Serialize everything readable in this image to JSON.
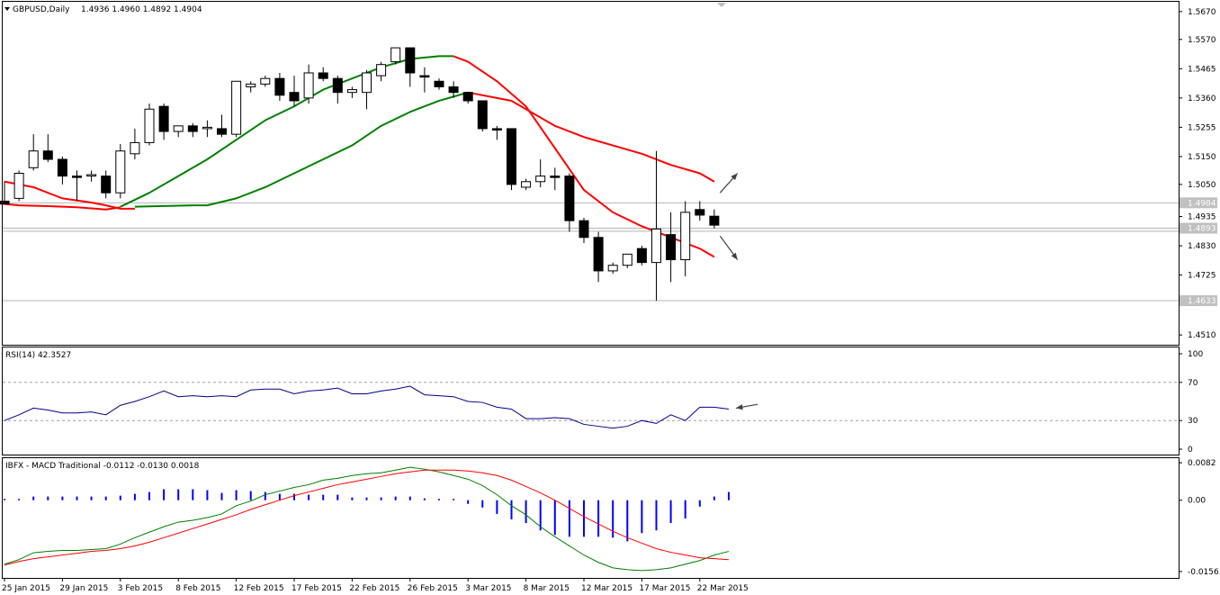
{
  "header": {
    "symbol": "GBPUSD,Daily",
    "ohlc": "1.4936 1.4960 1.4892 1.4904"
  },
  "chart_data": [
    {
      "type": "candlestick",
      "panel": "price",
      "ylim": [
        1.4475,
        1.5705
      ],
      "yticks": [
        "1.5670",
        "1.5570",
        "1.5465",
        "1.5360",
        "1.5255",
        "1.5150",
        "1.5050",
        "1.4935",
        "1.4830",
        "1.4725",
        "1.4510"
      ],
      "tags": [
        {
          "label": "1.4984",
          "value": 1.4984
        },
        {
          "label": "1.4893",
          "value": 1.4893
        },
        {
          "label": "1.4633",
          "value": 1.4633
        }
      ],
      "hlines": [
        1.4984,
        1.4893,
        1.4882,
        1.4633
      ],
      "xticks": [
        {
          "label": "25 Jan 2015",
          "index": 0
        },
        {
          "label": "29 Jan 2015",
          "index": 4
        },
        {
          "label": "3 Feb 2015",
          "index": 8
        },
        {
          "label": "8 Feb 2015",
          "index": 12
        },
        {
          "label": "12 Feb 2015",
          "index": 16
        },
        {
          "label": "17 Feb 2015",
          "index": 20
        },
        {
          "label": "22 Feb 2015",
          "index": 24
        },
        {
          "label": "26 Feb 2015",
          "index": 28
        },
        {
          "label": "3 Mar 2015",
          "index": 32
        },
        {
          "label": "8 Mar 2015",
          "index": 36
        },
        {
          "label": "12 Mar 2015",
          "index": 40
        },
        {
          "label": "17 Mar 2015",
          "index": 44
        },
        {
          "label": "22 Mar 2015",
          "index": 48
        }
      ],
      "candles": [
        {
          "o": 1.499,
          "h": 1.506,
          "l": 1.498,
          "c": 1.498
        },
        {
          "o": 1.5,
          "h": 1.51,
          "l": 1.499,
          "c": 1.509
        },
        {
          "o": 1.511,
          "h": 1.523,
          "l": 1.51,
          "c": 1.517
        },
        {
          "o": 1.517,
          "h": 1.523,
          "l": 1.513,
          "c": 1.514
        },
        {
          "o": 1.514,
          "h": 1.515,
          "l": 1.505,
          "c": 1.508
        },
        {
          "o": 1.508,
          "h": 1.51,
          "l": 1.499,
          "c": 1.5075
        },
        {
          "o": 1.508,
          "h": 1.51,
          "l": 1.506,
          "c": 1.5085
        },
        {
          "o": 1.508,
          "h": 1.51,
          "l": 1.5,
          "c": 1.502
        },
        {
          "o": 1.502,
          "h": 1.5195,
          "l": 1.5,
          "c": 1.517
        },
        {
          "o": 1.516,
          "h": 1.525,
          "l": 1.514,
          "c": 1.52
        },
        {
          "o": 1.52,
          "h": 1.534,
          "l": 1.519,
          "c": 1.532
        },
        {
          "o": 1.533,
          "h": 1.534,
          "l": 1.521,
          "c": 1.524
        },
        {
          "o": 1.524,
          "h": 1.526,
          "l": 1.522,
          "c": 1.526
        },
        {
          "o": 1.526,
          "h": 1.527,
          "l": 1.522,
          "c": 1.524
        },
        {
          "o": 1.525,
          "h": 1.528,
          "l": 1.522,
          "c": 1.5255
        },
        {
          "o": 1.525,
          "h": 1.53,
          "l": 1.522,
          "c": 1.523
        },
        {
          "o": 1.523,
          "h": 1.542,
          "l": 1.522,
          "c": 1.542
        },
        {
          "o": 1.54,
          "h": 1.542,
          "l": 1.538,
          "c": 1.541
        },
        {
          "o": 1.541,
          "h": 1.544,
          "l": 1.54,
          "c": 1.543
        },
        {
          "o": 1.543,
          "h": 1.545,
          "l": 1.535,
          "c": 1.537
        },
        {
          "o": 1.538,
          "h": 1.544,
          "l": 1.533,
          "c": 1.535
        },
        {
          "o": 1.536,
          "h": 1.548,
          "l": 1.534,
          "c": 1.545
        },
        {
          "o": 1.545,
          "h": 1.547,
          "l": 1.542,
          "c": 1.543
        },
        {
          "o": 1.543,
          "h": 1.544,
          "l": 1.534,
          "c": 1.538
        },
        {
          "o": 1.538,
          "h": 1.54,
          "l": 1.536,
          "c": 1.539
        },
        {
          "o": 1.538,
          "h": 1.546,
          "l": 1.532,
          "c": 1.545
        },
        {
          "o": 1.544,
          "h": 1.549,
          "l": 1.542,
          "c": 1.548
        },
        {
          "o": 1.549,
          "h": 1.554,
          "l": 1.548,
          "c": 1.554
        },
        {
          "o": 1.554,
          "h": 1.554,
          "l": 1.54,
          "c": 1.545
        },
        {
          "o": 1.544,
          "h": 1.547,
          "l": 1.538,
          "c": 1.5435
        },
        {
          "o": 1.542,
          "h": 1.543,
          "l": 1.539,
          "c": 1.54
        },
        {
          "o": 1.54,
          "h": 1.542,
          "l": 1.536,
          "c": 1.538
        },
        {
          "o": 1.538,
          "h": 1.538,
          "l": 1.534,
          "c": 1.535
        },
        {
          "o": 1.535,
          "h": 1.535,
          "l": 1.524,
          "c": 1.525
        },
        {
          "o": 1.525,
          "h": 1.526,
          "l": 1.521,
          "c": 1.5245
        },
        {
          "o": 1.525,
          "h": 1.525,
          "l": 1.503,
          "c": 1.505
        },
        {
          "o": 1.504,
          "h": 1.507,
          "l": 1.503,
          "c": 1.506
        },
        {
          "o": 1.506,
          "h": 1.514,
          "l": 1.504,
          "c": 1.508
        },
        {
          "o": 1.508,
          "h": 1.511,
          "l": 1.503,
          "c": 1.5075
        },
        {
          "o": 1.508,
          "h": 1.509,
          "l": 1.488,
          "c": 1.492
        },
        {
          "o": 1.492,
          "h": 1.493,
          "l": 1.484,
          "c": 1.486
        },
        {
          "o": 1.486,
          "h": 1.488,
          "l": 1.47,
          "c": 1.474
        },
        {
          "o": 1.474,
          "h": 1.477,
          "l": 1.473,
          "c": 1.476
        },
        {
          "o": 1.476,
          "h": 1.48,
          "l": 1.475,
          "c": 1.48
        },
        {
          "o": 1.482,
          "h": 1.483,
          "l": 1.476,
          "c": 1.477
        },
        {
          "o": 1.477,
          "h": 1.517,
          "l": 1.4633,
          "c": 1.489
        },
        {
          "o": 1.487,
          "h": 1.495,
          "l": 1.47,
          "c": 1.478
        },
        {
          "o": 1.478,
          "h": 1.499,
          "l": 1.472,
          "c": 1.495
        },
        {
          "o": 1.496,
          "h": 1.499,
          "l": 1.492,
          "c": 1.494
        },
        {
          "o": 1.4936,
          "h": 1.496,
          "l": 1.4892,
          "c": 1.4904
        }
      ],
      "series": [
        {
          "color": "#ff0000",
          "values": [
            {
              "i": 0,
              "v": 1.506
            },
            {
              "i": 2,
              "v": 1.504
            },
            {
              "i": 4,
              "v": 1.5
            },
            {
              "i": 6,
              "v": 1.4985
            },
            {
              "i": 7,
              "v": 1.4975
            },
            {
              "i": 8,
              "v": 1.4963
            },
            {
              "i": 9,
              "v": 1.4963
            }
          ]
        },
        {
          "color": "#ff0000",
          "values": [
            {
              "i": 32,
              "v": 1.538
            },
            {
              "i": 34,
              "v": 1.536
            },
            {
              "i": 35,
              "v": 1.535
            },
            {
              "i": 36,
              "v": 1.532
            },
            {
              "i": 38,
              "v": 1.526
            },
            {
              "i": 40,
              "v": 1.522
            },
            {
              "i": 42,
              "v": 1.519
            },
            {
              "i": 44,
              "v": 1.516
            },
            {
              "i": 46,
              "v": 1.512
            },
            {
              "i": 48,
              "v": 1.509
            },
            {
              "i": 49,
              "v": 1.506
            }
          ]
        },
        {
          "color": "#ff0000",
          "values": [
            {
              "i": 31,
              "v": 1.551
            },
            {
              "i": 32,
              "v": 1.549
            },
            {
              "i": 34,
              "v": 1.542
            },
            {
              "i": 36,
              "v": 1.533
            },
            {
              "i": 38,
              "v": 1.518
            },
            {
              "i": 40,
              "v": 1.503
            },
            {
              "i": 42,
              "v": 1.495
            },
            {
              "i": 44,
              "v": 1.49
            },
            {
              "i": 46,
              "v": 1.486
            },
            {
              "i": 48,
              "v": 1.482
            },
            {
              "i": 49,
              "v": 1.479
            }
          ]
        },
        {
          "color": "#ff0000",
          "values": [
            {
              "i": -1,
              "v": 1.4985
            },
            {
              "i": 1,
              "v": 1.4975
            },
            {
              "i": 3,
              "v": 1.4972
            },
            {
              "i": 5,
              "v": 1.4968
            },
            {
              "i": 7,
              "v": 1.496
            },
            {
              "i": 8,
              "v": 1.4968
            }
          ]
        },
        {
          "color": "#008000",
          "values": [
            {
              "i": 8,
              "v": 1.497
            },
            {
              "i": 10,
              "v": 1.502
            },
            {
              "i": 12,
              "v": 1.508
            },
            {
              "i": 14,
              "v": 1.514
            },
            {
              "i": 16,
              "v": 1.521
            },
            {
              "i": 18,
              "v": 1.528
            },
            {
              "i": 20,
              "v": 1.533
            },
            {
              "i": 22,
              "v": 1.539
            },
            {
              "i": 24,
              "v": 1.543
            },
            {
              "i": 26,
              "v": 1.547
            },
            {
              "i": 28,
              "v": 1.55
            },
            {
              "i": 30,
              "v": 1.551
            },
            {
              "i": 31,
              "v": 1.551
            }
          ]
        },
        {
          "color": "#008000",
          "values": [
            {
              "i": 9,
              "v": 1.497
            },
            {
              "i": 13,
              "v": 1.4975
            },
            {
              "i": 14,
              "v": 1.4975
            },
            {
              "i": 16,
              "v": 1.5
            },
            {
              "i": 18,
              "v": 1.504
            },
            {
              "i": 20,
              "v": 1.509
            },
            {
              "i": 22,
              "v": 1.514
            },
            {
              "i": 24,
              "v": 1.519
            },
            {
              "i": 26,
              "v": 1.526
            },
            {
              "i": 28,
              "v": 1.531
            },
            {
              "i": 30,
              "v": 1.535
            },
            {
              "i": 32,
              "v": 1.538
            }
          ]
        }
      ],
      "arrows": [
        {
          "from_i": 49.4,
          "from_v": 1.502,
          "to_i": 50.6,
          "to_v": 1.509
        },
        {
          "from_i": 49.4,
          "from_v": 1.4865,
          "to_i": 50.6,
          "to_v": 1.478
        }
      ]
    },
    {
      "type": "line",
      "panel": "rsi",
      "label": "RSI(14) 42.3527",
      "ylim": [
        0,
        100
      ],
      "yticks": [
        "100",
        "70",
        "30",
        "0"
      ],
      "levels": [
        70,
        30
      ],
      "series": [
        {
          "color": "#00008b",
          "values": [
            30,
            36,
            43,
            41,
            38,
            38,
            39,
            36,
            46,
            50,
            55,
            61,
            55,
            56,
            55,
            56,
            55,
            62,
            63,
            63,
            58,
            61,
            62,
            64,
            58,
            58,
            61,
            63,
            66,
            57,
            56,
            55,
            50,
            49,
            44,
            42,
            32,
            32,
            33,
            32,
            26,
            24,
            22,
            24,
            30,
            27,
            36,
            30,
            44,
            44,
            42
          ]
        }
      ],
      "arrow": {
        "from_i": 52,
        "from_v": 47,
        "to_i": 50.5,
        "to_v": 43
      }
    },
    {
      "type": "bar+line",
      "panel": "macd",
      "label": "IBFX - MACD Traditional -0.0112 -0.0130 0.0018",
      "ylim": [
        -0.017,
        0.0092
      ],
      "yticks": [
        "0.0082",
        "0.00",
        "-0.0156"
      ],
      "histogram": {
        "color": "#0000ff",
        "values": [
          0.0002,
          0.0002,
          0.0008,
          0.0008,
          0.0008,
          0.0008,
          0.0008,
          0.0008,
          0.001,
          0.0014,
          0.0018,
          0.0024,
          0.0024,
          0.0024,
          0.0022,
          0.0016,
          0.0022,
          0.002,
          0.0018,
          0.0014,
          0.0014,
          0.0012,
          0.0012,
          0.0012,
          0.0006,
          0.0006,
          0.0006,
          0.0008,
          0.0008,
          0.0004,
          0.0002,
          0.0,
          -0.0008,
          -0.0016,
          -0.003,
          -0.0042,
          -0.005,
          -0.0066,
          -0.0076,
          -0.008,
          -0.008,
          -0.008,
          -0.0082,
          -0.009,
          -0.0072,
          -0.0066,
          -0.005,
          -0.004,
          -0.0014,
          0.0008,
          0.0018
        ]
      },
      "series": [
        {
          "color": "#008000",
          "values": [
            -0.014,
            -0.013,
            -0.0115,
            -0.0112,
            -0.011,
            -0.011,
            -0.0108,
            -0.0106,
            -0.0096,
            -0.0082,
            -0.007,
            -0.0058,
            -0.0048,
            -0.0044,
            -0.0038,
            -0.003,
            -0.0012,
            -0.0002,
            0.0012,
            0.002,
            0.0028,
            0.0034,
            0.0044,
            0.0048,
            0.0054,
            0.0058,
            0.006,
            0.0066,
            0.0072,
            0.0068,
            0.0062,
            0.0054,
            0.0046,
            0.0032,
            0.0012,
            -0.0012,
            -0.0032,
            -0.0058,
            -0.008,
            -0.01,
            -0.012,
            -0.0136,
            -0.0148,
            -0.0152,
            -0.0154,
            -0.0152,
            -0.0148,
            -0.014,
            -0.0132,
            -0.012,
            -0.0112
          ]
        },
        {
          "color": "#ff0000",
          "values": [
            -0.0142,
            -0.0134,
            -0.0128,
            -0.0124,
            -0.012,
            -0.0116,
            -0.0112,
            -0.011,
            -0.0106,
            -0.01,
            -0.0092,
            -0.0082,
            -0.0072,
            -0.0062,
            -0.0052,
            -0.0042,
            -0.0032,
            -0.002,
            -0.001,
            0.0,
            0.001,
            0.0018,
            0.0026,
            0.0034,
            0.004,
            0.0046,
            0.0052,
            0.0058,
            0.0062,
            0.0066,
            0.0066,
            0.0066,
            0.0064,
            0.006,
            0.0054,
            0.0044,
            0.003,
            0.0016,
            0.0,
            -0.0018,
            -0.0036,
            -0.0052,
            -0.0068,
            -0.0082,
            -0.0094,
            -0.0106,
            -0.0114,
            -0.012,
            -0.0126,
            -0.0128,
            -0.013
          ]
        }
      ]
    }
  ]
}
